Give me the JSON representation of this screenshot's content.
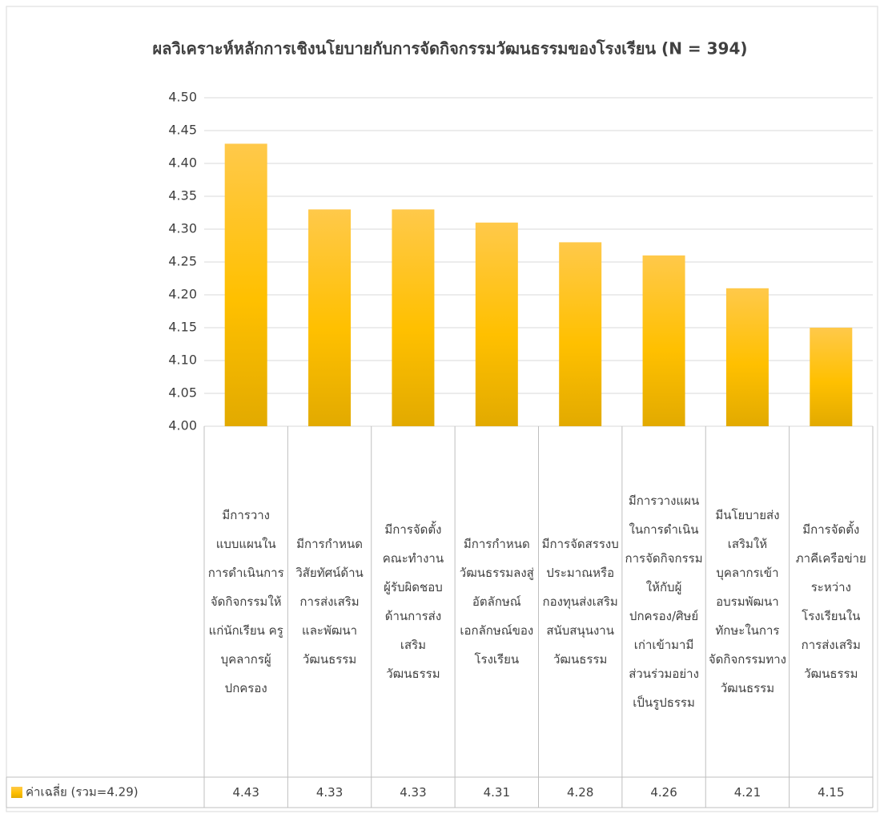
{
  "chart_data": {
    "type": "bar",
    "title": "ผลวิเคราะห์หลักการเชิงนโยบายกับการจัดกิจกรรมวัฒนธรรมของโรงเรียน (N = 394)",
    "categories": [
      "มีการวางแบบแผนในการดำเนินการจัดกิจกรรมให้แก่นักเรียน ครูบุคลากรผู้ปกครอง",
      "มีการกำหนดวิสัยทัศน์ด้านการส่งเสริมและพัฒนาวัฒนธรรม",
      "มีการจัดตั้งคณะทำงานผู้รับผิดชอบด้านการส่งเสริมวัฒนธรรม",
      "มีการกำหนดวัฒนธรรมลงสู่อัตลักษณ์เอกลักษณ์ของโรงเรียน",
      "มีการจัดสรรงบประมาณหรือกองทุนส่งเสริมสนับสนุนงานวัฒนธรรม",
      "มีการวางแผนในการดำเนินการจัดกิจกรรมให้กับผู้ปกครอง/ศิษย์เก่าเข้ามามีส่วนร่วมอย่างเป็นรูปธรรม",
      "มีนโยบายส่งเสริมให้บุคลากรเข้าอบรมพัฒนาทักษะในการจัดกิจกรรมทางวัฒนธรรม",
      "มีการจัดตั้งภาคีเครือข่ายระหว่างโรงเรียนในการส่งเสริมวัฒนธรรม"
    ],
    "series": [
      {
        "name": "ค่าเฉลี่ย (รวม=4.29)",
        "color": "#ffc000",
        "values": [
          4.43,
          4.33,
          4.33,
          4.31,
          4.28,
          4.26,
          4.21,
          4.15
        ]
      }
    ],
    "ylim": [
      4.0,
      4.5
    ],
    "yticks": [
      {
        "value": 4.0,
        "label": "4.00"
      },
      4.05,
      {
        "value": 4.1,
        "label": "4.10"
      },
      4.15,
      {
        "value": 4.2,
        "label": "4.20"
      },
      4.25,
      {
        "value": 4.3,
        "label": "4.30"
      },
      4.35,
      {
        "value": 4.4,
        "label": "4.40"
      },
      4.45,
      {
        "value": 4.5,
        "label": "4.50"
      }
    ],
    "grid": true
  }
}
